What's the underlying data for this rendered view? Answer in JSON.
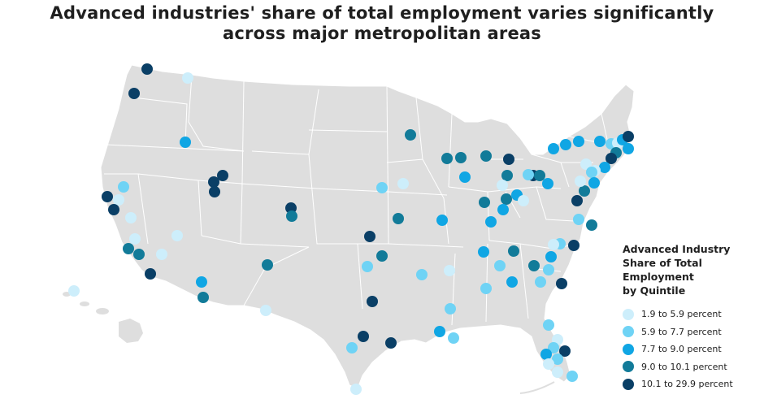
{
  "title": {
    "line1": "Advanced industries' share of total employment varies significantly",
    "line2": "across major metropolitan areas"
  },
  "legend": {
    "title_lines": [
      "Advanced Industry",
      "Share of Total",
      "Employment",
      "by Quintile"
    ],
    "items": [
      {
        "label": "1.9 to 5.9 percent",
        "color": "#cdeefb"
      },
      {
        "label": "5.9 to 7.7 percent",
        "color": "#6fd3f5"
      },
      {
        "label": "7.7 to 9.0 percent",
        "color": "#10a6e4"
      },
      {
        "label": "9.0 to 10.1 percent",
        "color": "#127b99"
      },
      {
        "label": "10.1 to 29.9 percent",
        "color": "#0a3f66"
      }
    ]
  },
  "colors": {
    "land": "#dedede",
    "border": "#ffffff",
    "q1": "#cdeefb",
    "q2": "#6fd3f5",
    "q3": "#10a6e4",
    "q4": "#127b99",
    "q5": "#0a3f66"
  }
}
